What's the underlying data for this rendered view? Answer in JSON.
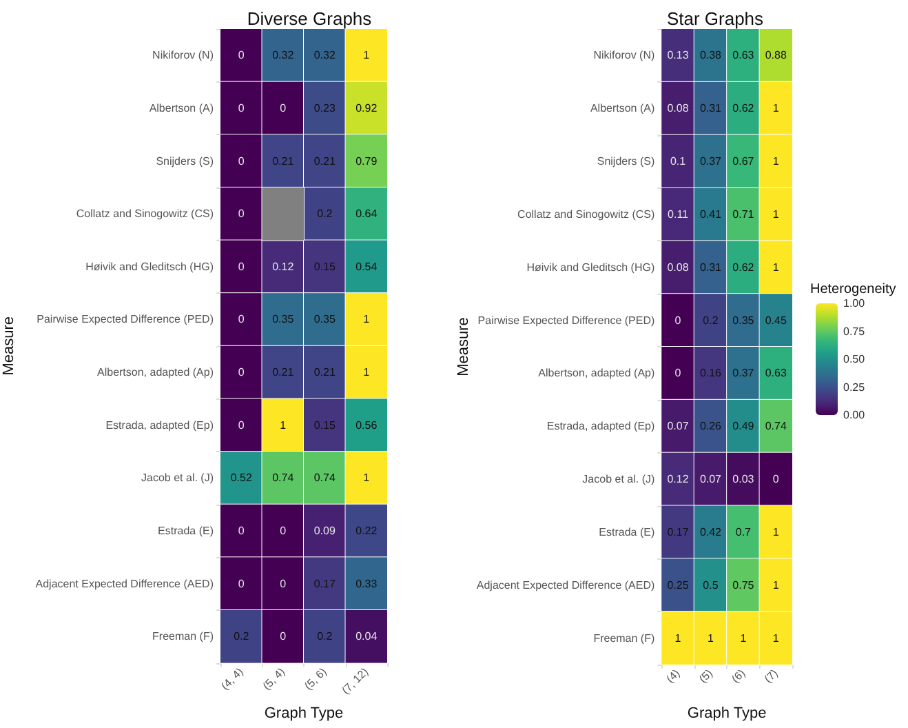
{
  "chart_data": [
    {
      "type": "heatmap",
      "title": "Diverse Graphs",
      "xlabel": "Graph Type",
      "ylabel": "Measure",
      "data_labels": true,
      "categories": [
        "(4, 4)",
        "(5, 4)",
        "(5, 6)",
        "(7, 12)"
      ],
      "y_categories": [
        "Nikiforov (N)",
        "Albertson (A)",
        "Snijders (S)",
        "Collatz and Sinogowitz (CS)",
        "Høivik and Gleditsch (HG)",
        "Pairwise Expected Difference (PED)",
        "Albertson, adapted (Ap)",
        "Estrada, adapted (Ep)",
        "Jacob et al. (J)",
        "Estrada (E)",
        "Adjacent Expected Difference (AED)",
        "Freeman (F)"
      ],
      "cells": [
        [
          0,
          0.32,
          0.32,
          1
        ],
        [
          0,
          0,
          0.23,
          0.92
        ],
        [
          0,
          0.21,
          0.21,
          0.79
        ],
        [
          0,
          null,
          0.2,
          0.64
        ],
        [
          0,
          0.12,
          0.15,
          0.54
        ],
        [
          0,
          0.35,
          0.35,
          1
        ],
        [
          0,
          0.21,
          0.21,
          1
        ],
        [
          0,
          1,
          0.15,
          0.56
        ],
        [
          0.52,
          0.74,
          0.74,
          1
        ],
        [
          0,
          0,
          0.09,
          0.22
        ],
        [
          0,
          0,
          0.17,
          0.33
        ],
        [
          0.2,
          0,
          0.2,
          0.04
        ]
      ]
    },
    {
      "type": "heatmap",
      "title": "Star Graphs",
      "xlabel": "Graph Type",
      "ylabel": "Measure",
      "clabel": "Heterogeneity",
      "data_labels": true,
      "clim": [
        0,
        1
      ],
      "cticks": [
        {
          "value": 0,
          "label": "0.00"
        },
        {
          "value": 0.25,
          "label": "0.25"
        },
        {
          "value": 0.5,
          "label": "0.50"
        },
        {
          "value": 0.75,
          "label": "0.75"
        },
        {
          "value": 1,
          "label": "1.00"
        }
      ],
      "categories": [
        "(4)",
        "(5)",
        "(6)",
        "(7)"
      ],
      "y_categories": [
        "Nikiforov (N)",
        "Albertson (A)",
        "Snijders (S)",
        "Collatz and Sinogowitz (CS)",
        "Høivik and Gleditsch (HG)",
        "Pairwise Expected Difference (PED)",
        "Albertson, adapted (Ap)",
        "Estrada, adapted (Ep)",
        "Jacob et al. (J)",
        "Estrada (E)",
        "Adjacent Expected Difference (AED)",
        "Freeman (F)"
      ],
      "cells": [
        [
          0.13,
          0.38,
          0.63,
          0.88
        ],
        [
          0.08,
          0.31,
          0.62,
          1
        ],
        [
          0.1,
          0.37,
          0.67,
          1
        ],
        [
          0.11,
          0.41,
          0.71,
          1
        ],
        [
          0.08,
          0.31,
          0.62,
          1
        ],
        [
          0,
          0.2,
          0.35,
          0.45
        ],
        [
          0,
          0.16,
          0.37,
          0.63
        ],
        [
          0.07,
          0.26,
          0.49,
          0.74
        ],
        [
          0.12,
          0.07,
          0.03,
          0
        ],
        [
          0.17,
          0.42,
          0.7,
          1
        ],
        [
          0.25,
          0.5,
          0.75,
          1
        ],
        [
          1,
          1,
          1,
          1
        ]
      ]
    }
  ]
}
